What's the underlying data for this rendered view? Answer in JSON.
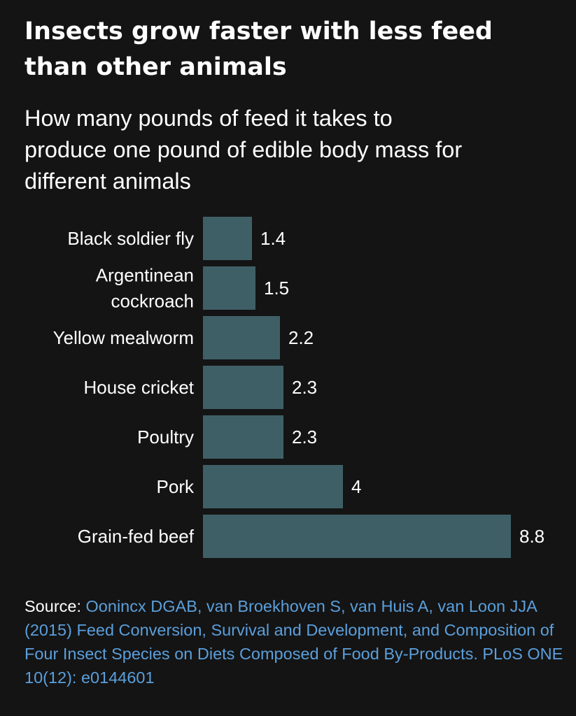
{
  "header": {
    "title_line1": "Insects grow faster with less feed",
    "title_line2": "than other animals",
    "subtitle_line1": "How many pounds of feed it takes to",
    "subtitle_line2": "produce one pound of edible body mass for",
    "subtitle_line3": "different animals"
  },
  "chart_data": {
    "type": "bar",
    "orientation": "horizontal",
    "categories": [
      [
        "Black soldier fly"
      ],
      [
        "Argentinean",
        "cockroach"
      ],
      [
        "Yellow mealworm"
      ],
      [
        "House cricket"
      ],
      [
        "Poultry"
      ],
      [
        "Pork"
      ],
      [
        "Grain-fed beef"
      ]
    ],
    "values": [
      1.4,
      1.5,
      2.2,
      2.3,
      2.3,
      4,
      8.8
    ],
    "value_labels": [
      "1.4",
      "1.5",
      "2.2",
      "2.3",
      "2.3",
      "4",
      "8.8"
    ],
    "xlim": [
      0,
      8.8
    ],
    "bar_color": "#3f5f66",
    "grid": false,
    "legend": false
  },
  "footer": {
    "source_label": "Source: ",
    "source_text": "Oonincx DGAB, van Broekhoven S, van Huis A, van Loon JJA (2015) Feed Conversion, Survival and Development, and Composition of Four Insect Species on Diets Composed of Food By-Products. PLoS ONE 10(12): e0144601",
    "link_color": "#5b9fdc"
  }
}
